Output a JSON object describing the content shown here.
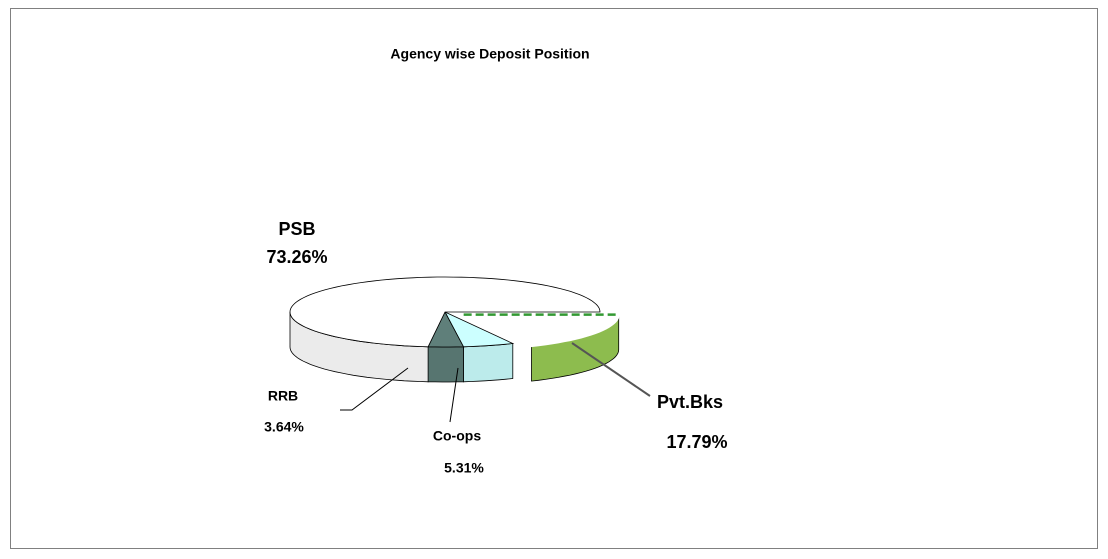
{
  "chart_data": {
    "type": "pie3d",
    "title": "Agency wise Deposit Position",
    "categories": [
      "Pvt.Bks",
      "Co-ops",
      "RRB",
      "PSB"
    ],
    "values": [
      17.79,
      5.31,
      3.64,
      73.26
    ],
    "value_labels": [
      "17.79%",
      "5.31%",
      "3.64%",
      "73.26%"
    ],
    "colors": [
      "#99cc55",
      "#ccffff",
      "#5f7f7a",
      "#ffffff"
    ]
  }
}
